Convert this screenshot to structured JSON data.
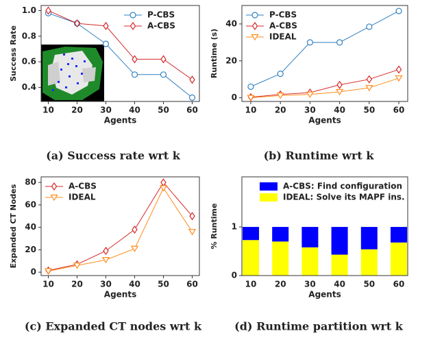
{
  "chart_data": [
    {
      "type": "line",
      "caption": "(a) Success rate wrt k",
      "ylabel": "Success Rate",
      "xlabel": "Agents",
      "x": [
        10,
        20,
        30,
        40,
        50,
        60
      ],
      "xlim": [
        7.5,
        62.5
      ],
      "xticks": [
        10,
        20,
        30,
        40,
        50,
        60
      ],
      "ylim": [
        0.29,
        1.04
      ],
      "yticks": [
        0.4,
        0.6,
        0.8,
        {
          "value": 1.0,
          "label": "1.0"
        }
      ],
      "legend": "upper-right",
      "series": [
        {
          "name": "P-CBS",
          "color": "#2f7fc1",
          "marker": "circle",
          "values": [
            0.98,
            0.9,
            0.74,
            0.5,
            0.5,
            0.32
          ]
        },
        {
          "name": "A-CBS",
          "color": "#d62728",
          "marker": "diamond",
          "values": [
            1.0,
            0.9,
            0.88,
            0.62,
            0.62,
            0.46
          ]
        }
      ]
    },
    {
      "type": "line",
      "caption": "(b) Runtime wrt k",
      "ylabel": "Runtime (s)",
      "xlabel": "Agents",
      "x": [
        10,
        20,
        30,
        40,
        50,
        60
      ],
      "xlim": [
        7,
        63
      ],
      "xticks": [
        10,
        20,
        30,
        40,
        50,
        60
      ],
      "ylim": [
        -2,
        50
      ],
      "yticks": [
        0,
        20,
        40
      ],
      "legend": "upper-left",
      "series": [
        {
          "name": "P-CBS",
          "color": "#2f7fc1",
          "marker": "circle",
          "values": [
            6,
            13,
            30,
            30,
            38.5,
            47
          ]
        },
        {
          "name": "A-CBS",
          "color": "#d62728",
          "marker": "diamond",
          "values": [
            0.3,
            1.8,
            2.8,
            7,
            10,
            15.3
          ]
        },
        {
          "name": "IDEAL",
          "color": "#ff8c1a",
          "marker": "triangle-down",
          "values": [
            0,
            1.2,
            1.8,
            3.2,
            5.4,
            10.6
          ]
        }
      ]
    },
    {
      "type": "line",
      "caption": "(c) Expanded CT nodes wrt k",
      "ylabel": "Expanded CT Nodes",
      "xlabel": "Agents",
      "x": [
        10,
        20,
        30,
        40,
        50,
        60
      ],
      "xlim": [
        7.5,
        62.5
      ],
      "xticks": [
        10,
        20,
        30,
        40,
        50,
        60
      ],
      "ylim": [
        -3,
        85
      ],
      "yticks": [
        0,
        20,
        40,
        60,
        80
      ],
      "legend": "upper-left",
      "series": [
        {
          "name": "A-CBS",
          "color": "#d62728",
          "marker": "diamond",
          "values": [
            1.5,
            7,
            19,
            38,
            80,
            50
          ]
        },
        {
          "name": "IDEAL",
          "color": "#ff8c1a",
          "marker": "triangle-down",
          "values": [
            1,
            6,
            11,
            21,
            75,
            36
          ]
        }
      ]
    },
    {
      "type": "stacked-bar",
      "caption": "(d) Runtime partition wrt k",
      "ylabel": "% Runtime",
      "xlabel": "Agents",
      "categories": [
        "10",
        "20",
        "30",
        "40",
        "50",
        "60"
      ],
      "ylim": [
        0,
        2.03
      ],
      "yticks": [
        0,
        1
      ],
      "legend": "upper-center",
      "series": [
        {
          "name": "A-CBS: Find configuration",
          "color": "#0000ff",
          "values": [
            0.27,
            0.3,
            0.42,
            0.57,
            0.46,
            0.32
          ]
        },
        {
          "name": "IDEAL: Solve its MAPF ins.",
          "color": "#ffff00",
          "values": [
            0.73,
            0.7,
            0.58,
            0.43,
            0.54,
            0.68
          ]
        }
      ]
    }
  ]
}
